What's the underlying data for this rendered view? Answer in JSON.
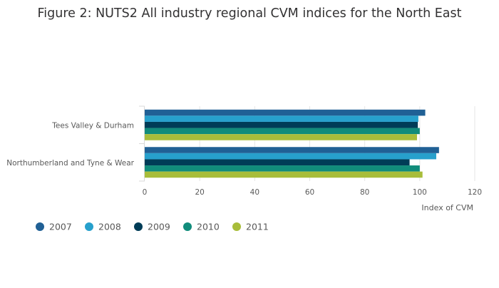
{
  "chart_data": {
    "type": "bar",
    "orientation": "horizontal",
    "title": "Figure 2: NUTS2 All industry regional CVM indices for the North East",
    "xlabel": "Index of CVM",
    "ylabel": "",
    "xlim": [
      0,
      120
    ],
    "xticks": [
      0,
      20,
      40,
      60,
      80,
      100,
      120
    ],
    "grid": true,
    "legend_position": "bottom-left",
    "categories": [
      "Tees Valley & Durham",
      "Northumberland and Tyne & Wear"
    ],
    "series": [
      {
        "name": "2007",
        "color": "#206095",
        "values": [
          102.0,
          107.0
        ]
      },
      {
        "name": "2008",
        "color": "#27a0cc",
        "values": [
          99.5,
          106.0
        ]
      },
      {
        "name": "2009",
        "color": "#003c57",
        "values": [
          99.3,
          96.3
        ]
      },
      {
        "name": "2010",
        "color": "#118c7b",
        "values": [
          100.0,
          100.0
        ]
      },
      {
        "name": "2011",
        "color": "#a8bd3a",
        "values": [
          99.0,
          101.0
        ]
      }
    ]
  }
}
